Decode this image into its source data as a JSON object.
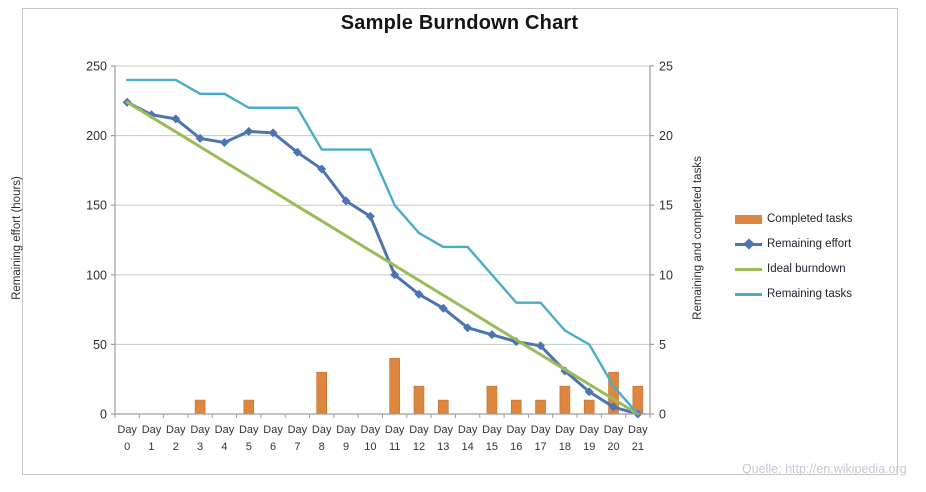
{
  "source": {
    "text": "Quelle: http://en.wikipedia.org"
  },
  "colors": {
    "completed_tasks": "#DC8640",
    "remaining_effort": "#4C74B0",
    "ideal_burndown": "#9BBB59",
    "remaining_tasks": "#4BACC6",
    "gridline": "#C9C9C9",
    "axis": "#9D9D9D",
    "tick_text": "#2E2E3A",
    "frame": "#C6C6C6",
    "title_text": "#141414",
    "source_text": "#C7C7D6"
  },
  "chart_data": {
    "type": "combo-bar-line",
    "title": "Sample Burndown Chart",
    "categories": [
      "Day 0",
      "Day 1",
      "Day 2",
      "Day 3",
      "Day 4",
      "Day 5",
      "Day 6",
      "Day 7",
      "Day 8",
      "Day 9",
      "Day 10",
      "Day 11",
      "Day 12",
      "Day 13",
      "Day 14",
      "Day 15",
      "Day 16",
      "Day 17",
      "Day 18",
      "Day 19",
      "Day 20",
      "Day 21"
    ],
    "axis_left": {
      "label": "Remaining effort (hours)",
      "min": 0,
      "max": 250,
      "ticks": [
        0,
        50,
        100,
        150,
        200,
        250
      ]
    },
    "axis_right": {
      "label": "Remaining and completed tasks",
      "min": 0,
      "max": 25,
      "ticks": [
        0,
        5,
        10,
        15,
        20,
        25
      ]
    },
    "grid": "horizontal only",
    "legend_position": "right",
    "series": [
      {
        "name": "Completed tasks",
        "type": "bar",
        "axis": "right",
        "color": "#DC8640",
        "values": [
          0,
          0,
          0,
          1,
          0,
          1,
          0,
          0,
          3,
          0,
          0,
          4,
          2,
          1,
          0,
          2,
          1,
          1,
          2,
          1,
          3,
          2
        ]
      },
      {
        "name": "Remaining effort",
        "type": "line",
        "marker": "diamond",
        "axis": "left",
        "color": "#4C74B0",
        "values": [
          224,
          215,
          212,
          198,
          195,
          203,
          202,
          188,
          176,
          153,
          142,
          100,
          86,
          76,
          62,
          57,
          52,
          49,
          31,
          16,
          5,
          0
        ]
      },
      {
        "name": "Ideal burndown",
        "type": "line",
        "axis": "left",
        "color": "#9BBB59",
        "values": [
          224,
          213.3,
          202.7,
          192,
          181.3,
          170.7,
          160,
          149.3,
          138.7,
          128,
          117.3,
          106.7,
          96,
          85.3,
          74.7,
          64,
          53.3,
          42.7,
          32,
          21.3,
          10.7,
          0
        ]
      },
      {
        "name": "Remaining tasks",
        "type": "line",
        "axis": "right",
        "color": "#4BACC6",
        "values": [
          24,
          24,
          24,
          23,
          23,
          22,
          22,
          22,
          19,
          19,
          19,
          15,
          13,
          12,
          12,
          10,
          8,
          8,
          6,
          5,
          2,
          0
        ]
      }
    ]
  }
}
